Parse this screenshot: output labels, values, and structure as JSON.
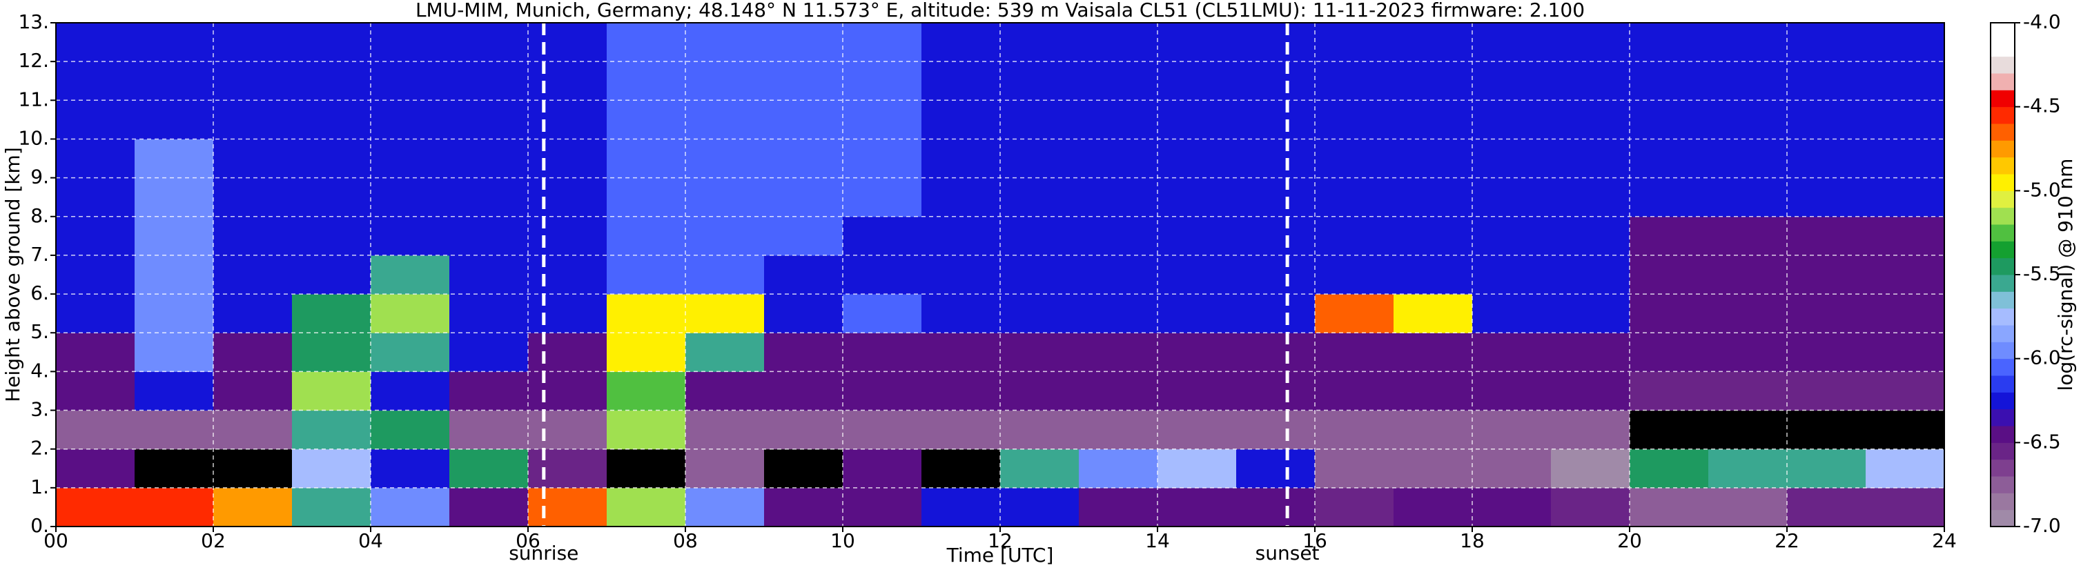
{
  "chart_data": {
    "type": "heatmap",
    "title": "LMU-MIM, Munich, Germany; 48.148° N 11.573° E, altitude: 539 m    Vaisala CL51 (CL51LMU): 11-11-2023    firmware: 2.100",
    "x_label": "Time [UTC]",
    "y_label": "Height above ground [km]",
    "colorbar_label": "log(rc-signal) @ 910 nm",
    "xlim": [
      0,
      24
    ],
    "ylim": [
      0,
      13
    ],
    "zlim": [
      -7.0,
      -4.0
    ],
    "grid": true,
    "xticks": [
      {
        "value": 0,
        "label": "00"
      },
      {
        "value": 2,
        "label": "02"
      },
      {
        "value": 4,
        "label": "04"
      },
      {
        "value": 6,
        "label": "06"
      },
      {
        "value": 8,
        "label": "08"
      },
      {
        "value": 10,
        "label": "10"
      },
      {
        "value": 12,
        "label": "12"
      },
      {
        "value": 14,
        "label": "14"
      },
      {
        "value": 16,
        "label": "16"
      },
      {
        "value": 18,
        "label": "18"
      },
      {
        "value": 20,
        "label": "20"
      },
      {
        "value": 22,
        "label": "22"
      },
      {
        "value": 24,
        "label": "24"
      }
    ],
    "yticks": [
      {
        "value": 0,
        "label": "0."
      },
      {
        "value": 1,
        "label": "1."
      },
      {
        "value": 2,
        "label": "2."
      },
      {
        "value": 3,
        "label": "3."
      },
      {
        "value": 4,
        "label": "4."
      },
      {
        "value": 5,
        "label": "5."
      },
      {
        "value": 6,
        "label": "6."
      },
      {
        "value": 7,
        "label": "7."
      },
      {
        "value": 8,
        "label": "8."
      },
      {
        "value": 9,
        "label": "9."
      },
      {
        "value": 10,
        "label": "10."
      },
      {
        "value": 11,
        "label": "11."
      },
      {
        "value": 12,
        "label": "12."
      },
      {
        "value": 13,
        "label": "13."
      }
    ],
    "zticks": [
      {
        "value": -7.0,
        "label": "-7.0"
      },
      {
        "value": -6.5,
        "label": "-6.5"
      },
      {
        "value": -6.0,
        "label": "-6.0"
      },
      {
        "value": -5.5,
        "label": "-5.5"
      },
      {
        "value": -5.0,
        "label": "-5.0"
      },
      {
        "value": -4.5,
        "label": "-4.5"
      },
      {
        "value": -4.0,
        "label": "-4.0"
      }
    ],
    "colorscale": [
      "#a08aa8",
      "#9a78a0",
      "#8d5d98",
      "#7e3f8f",
      "#6a2487",
      "#5a0f85",
      "#3b0fb0",
      "#1414d8",
      "#2a3cf0",
      "#4a64ff",
      "#6f8cff",
      "#8aa6ff",
      "#a6bcff",
      "#7fc0d8",
      "#3aa890",
      "#1e9a60",
      "#14a030",
      "#50c040",
      "#a0e050",
      "#e0f040",
      "#fff000",
      "#ffc800",
      "#ff9a00",
      "#ff6000",
      "#ff2a00",
      "#f00000",
      "#f0b0b0",
      "#e8dcdc",
      "#ffffff",
      "#ffffff"
    ],
    "under_color": "#000000",
    "annotations": [
      {
        "text": "sunrise",
        "x": 6.2
      },
      {
        "text": "sunset",
        "x": 15.65
      }
    ],
    "z": [
      [
        -4.6,
        -4.6,
        -4.8,
        -5.6,
        -6.0,
        -6.4,
        -4.7,
        -5.2,
        -6.0,
        -6.5,
        -6.4,
        -6.3,
        -6.2,
        -6.5,
        -6.5,
        -6.5,
        -6.6,
        -6.5,
        -6.5,
        -6.6,
        -6.7,
        -6.7,
        -6.6,
        -6.6
      ],
      [
        -6.4,
        -7.2,
        -7.2,
        -5.8,
        -6.2,
        -5.5,
        -6.6,
        -7.3,
        -6.8,
        -7.2,
        -6.4,
        -7.3,
        -5.6,
        -6.0,
        -5.8,
        -6.3,
        -6.8,
        -6.8,
        -6.8,
        -6.9,
        -5.5,
        -5.6,
        -5.6,
        -5.7
      ],
      [
        -6.8,
        -6.7,
        -6.8,
        -5.6,
        -5.4,
        -6.8,
        -6.8,
        -5.2,
        -6.7,
        -6.7,
        -6.7,
        -6.8,
        -6.7,
        -6.8,
        -6.8,
        -6.8,
        -6.8,
        -6.8,
        -6.8,
        -6.8,
        -7.1,
        -7.1,
        -7.1,
        -7.1
      ],
      [
        -6.5,
        -6.2,
        -6.5,
        -5.2,
        -6.2,
        -6.5,
        -6.5,
        -5.3,
        -6.5,
        -6.5,
        -6.5,
        -6.5,
        -6.5,
        -6.5,
        -6.5,
        -6.5,
        -6.5,
        -6.5,
        -6.5,
        -6.5,
        -6.6,
        -6.6,
        -6.6,
        -6.6
      ],
      [
        -6.4,
        -6.0,
        -6.4,
        -5.5,
        -5.6,
        -6.2,
        -6.4,
        -5.0,
        -5.6,
        -6.4,
        -6.4,
        -6.4,
        -6.4,
        -6.4,
        -6.4,
        -6.4,
        -6.4,
        -6.4,
        -6.4,
        -6.4,
        -6.5,
        -6.5,
        -6.5,
        -6.5
      ],
      [
        -6.3,
        -6.0,
        -6.3,
        -5.4,
        -5.2,
        -6.3,
        -6.3,
        -5.0,
        -4.9,
        -6.3,
        -6.1,
        -6.3,
        -6.3,
        -6.3,
        -6.3,
        -6.2,
        -4.7,
        -5.0,
        -6.3,
        -6.3,
        -6.4,
        -6.4,
        -6.4,
        -6.4
      ],
      [
        -6.3,
        -6.0,
        -6.3,
        -6.3,
        -5.6,
        -6.3,
        -6.3,
        -6.1,
        -6.1,
        -6.2,
        -6.2,
        -6.2,
        -6.2,
        -6.3,
        -6.3,
        -6.3,
        -6.2,
        -6.3,
        -6.3,
        -6.3,
        -6.4,
        -6.4,
        -6.4,
        -6.4
      ],
      [
        -6.3,
        -6.0,
        -6.3,
        -6.3,
        -6.3,
        -6.3,
        -6.2,
        -6.1,
        -6.1,
        -6.1,
        -6.2,
        -6.2,
        -6.2,
        -6.3,
        -6.3,
        -6.3,
        -6.3,
        -6.3,
        -6.3,
        -6.3,
        -6.4,
        -6.4,
        -6.4,
        -6.4
      ],
      [
        -6.3,
        -6.0,
        -6.3,
        -6.3,
        -6.3,
        -6.3,
        -6.2,
        -6.1,
        -6.1,
        -6.1,
        -6.1,
        -6.2,
        -6.2,
        -6.3,
        -6.3,
        -6.3,
        -6.3,
        -6.3,
        -6.3,
        -6.3,
        -6.3,
        -6.3,
        -6.3,
        -6.3
      ],
      [
        -6.3,
        -6.0,
        -6.3,
        -6.3,
        -6.3,
        -6.3,
        -6.2,
        -6.1,
        -6.1,
        -6.1,
        -6.1,
        -6.2,
        -6.2,
        -6.3,
        -6.3,
        -6.3,
        -6.3,
        -6.3,
        -6.3,
        -6.3,
        -6.3,
        -6.3,
        -6.3,
        -6.3
      ],
      [
        -6.2,
        -6.2,
        -6.2,
        -6.2,
        -6.2,
        -6.2,
        -6.2,
        -6.1,
        -6.1,
        -6.1,
        -6.1,
        -6.2,
        -6.2,
        -6.2,
        -6.2,
        -6.2,
        -6.3,
        -6.3,
        -6.3,
        -6.3,
        -6.3,
        -6.3,
        -6.3,
        -6.3
      ],
      [
        -6.2,
        -6.2,
        -6.2,
        -6.2,
        -6.2,
        -6.2,
        -6.2,
        -6.1,
        -6.1,
        -6.1,
        -6.1,
        -6.2,
        -6.2,
        -6.2,
        -6.2,
        -6.2,
        -6.2,
        -6.3,
        -6.3,
        -6.3,
        -6.3,
        -6.3,
        -6.3,
        -6.3
      ],
      [
        -6.2,
        -6.2,
        -6.2,
        -6.2,
        -6.2,
        -6.2,
        -6.2,
        -6.1,
        -6.1,
        -6.1,
        -6.1,
        -6.2,
        -6.2,
        -6.2,
        -6.2,
        -6.2,
        -6.2,
        -6.2,
        -6.3,
        -6.3,
        -6.3,
        -6.3,
        -6.3,
        -6.3
      ]
    ]
  }
}
